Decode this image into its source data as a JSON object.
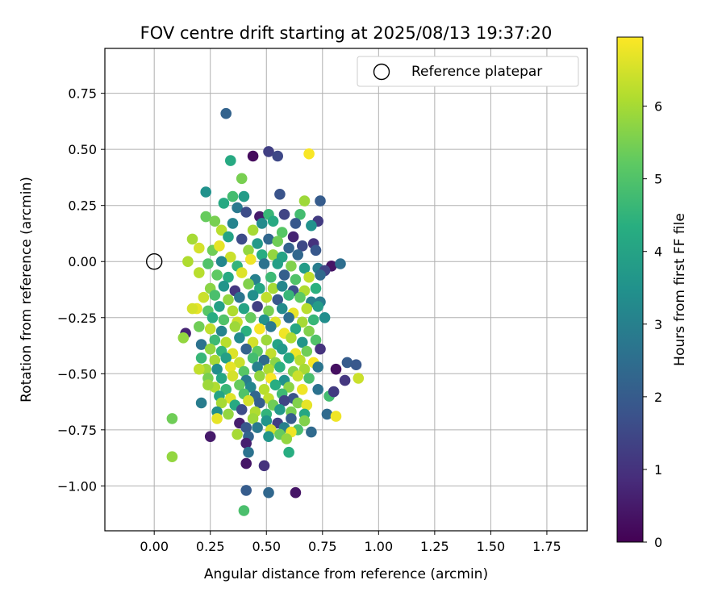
{
  "chart_data": {
    "type": "scatter",
    "title": "FOV centre drift starting at 2025/08/13 19:37:20",
    "xlabel": "Angular distance from reference (arcmin)",
    "ylabel": "Rotation from reference (arcmin)",
    "xlim": [
      -0.22,
      1.93
    ],
    "ylim": [
      -1.2,
      0.95
    ],
    "xticks": [
      "0.00",
      "0.25",
      "0.50",
      "0.75",
      "1.00",
      "1.25",
      "1.50",
      "1.75"
    ],
    "yticks": [
      "0.75",
      "0.50",
      "0.25",
      "0.00",
      "−0.25",
      "−0.50",
      "−0.75",
      "−1.00"
    ],
    "grid": true,
    "legend": {
      "placement": "top-right",
      "entries": [
        {
          "label": "Reference platepar",
          "marker": "hollow-circle"
        }
      ]
    },
    "reference_point": {
      "x": 0.0,
      "y": 0.0
    },
    "colorbar": {
      "label": "Hours from first FF file",
      "colormap": "viridis",
      "range": [
        0,
        6.95
      ],
      "ticks": [
        "0",
        "1",
        "2",
        "3",
        "4",
        "5",
        "6"
      ]
    },
    "points": [
      [
        0.32,
        0.66,
        2.2
      ],
      [
        0.51,
        0.49,
        1.3
      ],
      [
        0.44,
        0.47,
        0.2
      ],
      [
        0.55,
        0.47,
        1.5
      ],
      [
        0.69,
        0.48,
        6.9
      ],
      [
        0.34,
        0.45,
        4.2
      ],
      [
        0.39,
        0.37,
        5.5
      ],
      [
        0.23,
        0.31,
        3.5
      ],
      [
        0.35,
        0.29,
        4.8
      ],
      [
        0.4,
        0.29,
        3.8
      ],
      [
        0.56,
        0.3,
        1.8
      ],
      [
        0.67,
        0.27,
        5.9
      ],
      [
        0.74,
        0.27,
        2.0
      ],
      [
        0.31,
        0.26,
        4.2
      ],
      [
        0.37,
        0.24,
        2.8
      ],
      [
        0.41,
        0.22,
        1.6
      ],
      [
        0.47,
        0.2,
        0.5
      ],
      [
        0.51,
        0.21,
        4.6
      ],
      [
        0.58,
        0.21,
        1.4
      ],
      [
        0.65,
        0.21,
        4.8
      ],
      [
        0.23,
        0.2,
        5.3
      ],
      [
        0.27,
        0.18,
        5.5
      ],
      [
        0.35,
        0.17,
        3.1
      ],
      [
        0.48,
        0.17,
        3.3
      ],
      [
        0.53,
        0.18,
        4.2
      ],
      [
        0.63,
        0.17,
        1.9
      ],
      [
        0.73,
        0.18,
        1.2
      ],
      [
        0.7,
        0.16,
        3.5
      ],
      [
        0.3,
        0.14,
        6.2
      ],
      [
        0.44,
        0.14,
        6.0
      ],
      [
        0.51,
        0.1,
        2.3
      ],
      [
        0.57,
        0.13,
        5.1
      ],
      [
        0.62,
        0.11,
        0.7
      ],
      [
        0.17,
        0.1,
        6.0
      ],
      [
        0.33,
        0.11,
        4.0
      ],
      [
        0.39,
        0.1,
        1.6
      ],
      [
        0.46,
        0.08,
        3.7
      ],
      [
        0.55,
        0.09,
        5.4
      ],
      [
        0.6,
        0.06,
        2.2
      ],
      [
        0.66,
        0.07,
        1.5
      ],
      [
        0.71,
        0.08,
        1.0
      ],
      [
        0.2,
        0.06,
        6.5
      ],
      [
        0.26,
        0.05,
        5.4
      ],
      [
        0.29,
        0.07,
        6.7
      ],
      [
        0.34,
        0.02,
        6.4
      ],
      [
        0.42,
        0.05,
        5.8
      ],
      [
        0.48,
        0.03,
        4.3
      ],
      [
        0.53,
        0.03,
        5.8
      ],
      [
        0.57,
        0.02,
        4.0
      ],
      [
        0.64,
        0.03,
        2.3
      ],
      [
        0.72,
        0.05,
        1.9
      ],
      [
        0.15,
        0.0,
        6.1
      ],
      [
        0.24,
        -0.01,
        5.0
      ],
      [
        0.3,
        0.0,
        3.2
      ],
      [
        0.37,
        -0.02,
        4.5
      ],
      [
        0.43,
        0.01,
        6.8
      ],
      [
        0.49,
        -0.01,
        2.6
      ],
      [
        0.55,
        -0.01,
        3.9
      ],
      [
        0.61,
        -0.02,
        5.6
      ],
      [
        0.67,
        -0.03,
        3.8
      ],
      [
        0.73,
        -0.03,
        2.9
      ],
      [
        0.79,
        -0.02,
        0.4
      ],
      [
        0.83,
        -0.01,
        2.5
      ],
      [
        0.76,
        -0.04,
        1.4
      ],
      [
        0.2,
        -0.05,
        6.2
      ],
      [
        0.28,
        -0.06,
        5.2
      ],
      [
        0.33,
        -0.07,
        4.2
      ],
      [
        0.39,
        -0.05,
        6.6
      ],
      [
        0.45,
        -0.08,
        3.0
      ],
      [
        0.52,
        -0.07,
        4.7
      ],
      [
        0.58,
        -0.06,
        2.1
      ],
      [
        0.63,
        -0.08,
        5.0
      ],
      [
        0.69,
        -0.07,
        6.3
      ],
      [
        0.74,
        -0.06,
        2.4
      ],
      [
        0.25,
        -0.12,
        5.7
      ],
      [
        0.31,
        -0.11,
        3.6
      ],
      [
        0.36,
        -0.13,
        1.1
      ],
      [
        0.42,
        -0.1,
        5.6
      ],
      [
        0.47,
        -0.12,
        4.1
      ],
      [
        0.53,
        -0.12,
        6.0
      ],
      [
        0.57,
        -0.11,
        3.2
      ],
      [
        0.62,
        -0.13,
        1.7
      ],
      [
        0.67,
        -0.13,
        6.1
      ],
      [
        0.72,
        -0.12,
        4.4
      ],
      [
        0.22,
        -0.16,
        6.4
      ],
      [
        0.27,
        -0.15,
        4.9
      ],
      [
        0.33,
        -0.17,
        5.8
      ],
      [
        0.38,
        -0.16,
        2.7
      ],
      [
        0.44,
        -0.15,
        3.4
      ],
      [
        0.5,
        -0.16,
        6.3
      ],
      [
        0.55,
        -0.17,
        1.9
      ],
      [
        0.6,
        -0.15,
        4.6
      ],
      [
        0.65,
        -0.16,
        5.2
      ],
      [
        0.7,
        -0.18,
        3.0
      ],
      [
        0.74,
        -0.18,
        2.9
      ],
      [
        0.19,
        -0.21,
        6.7
      ],
      [
        0.24,
        -0.22,
        5.1
      ],
      [
        0.29,
        -0.2,
        3.9
      ],
      [
        0.35,
        -0.22,
        6.1
      ],
      [
        0.4,
        -0.21,
        4.0
      ],
      [
        0.46,
        -0.2,
        1.3
      ],
      [
        0.51,
        -0.22,
        5.5
      ],
      [
        0.57,
        -0.21,
        3.3
      ],
      [
        0.62,
        -0.23,
        6.7
      ],
      [
        0.68,
        -0.21,
        6.2
      ],
      [
        0.73,
        -0.2,
        3.8
      ],
      [
        0.17,
        -0.21,
        6.5
      ],
      [
        0.26,
        -0.25,
        4.3
      ],
      [
        0.31,
        -0.26,
        5.0
      ],
      [
        0.37,
        -0.27,
        6.4
      ],
      [
        0.43,
        -0.25,
        5.3
      ],
      [
        0.49,
        -0.26,
        3.5
      ],
      [
        0.54,
        -0.27,
        6.6
      ],
      [
        0.6,
        -0.25,
        2.5
      ],
      [
        0.66,
        -0.27,
        6.0
      ],
      [
        0.71,
        -0.26,
        4.6
      ],
      [
        0.76,
        -0.25,
        3.4
      ],
      [
        0.14,
        -0.32,
        0.7
      ],
      [
        0.2,
        -0.29,
        5.4
      ],
      [
        0.25,
        -0.3,
        6.3
      ],
      [
        0.3,
        -0.31,
        3.1
      ],
      [
        0.36,
        -0.29,
        5.9
      ],
      [
        0.41,
        -0.31,
        4.4
      ],
      [
        0.47,
        -0.3,
        6.9
      ],
      [
        0.52,
        -0.29,
        2.8
      ],
      [
        0.58,
        -0.32,
        6.8
      ],
      [
        0.63,
        -0.3,
        4.1
      ],
      [
        0.69,
        -0.31,
        5.6
      ],
      [
        0.13,
        -0.34,
        5.8
      ],
      [
        0.21,
        -0.37,
        2.6
      ],
      [
        0.27,
        -0.35,
        4.7
      ],
      [
        0.32,
        -0.36,
        6.2
      ],
      [
        0.38,
        -0.34,
        3.3
      ],
      [
        0.44,
        -0.36,
        6.5
      ],
      [
        0.5,
        -0.35,
        5.9
      ],
      [
        0.55,
        -0.37,
        4.0
      ],
      [
        0.61,
        -0.34,
        6.1
      ],
      [
        0.66,
        -0.36,
        3.6
      ],
      [
        0.72,
        -0.35,
        5.0
      ],
      [
        0.25,
        -0.39,
        5.8
      ],
      [
        0.3,
        -0.4,
        4.5
      ],
      [
        0.35,
        -0.41,
        6.6
      ],
      [
        0.41,
        -0.39,
        2.2
      ],
      [
        0.46,
        -0.4,
        5.2
      ],
      [
        0.52,
        -0.41,
        6.3
      ],
      [
        0.57,
        -0.39,
        3.7
      ],
      [
        0.63,
        -0.41,
        6.8
      ],
      [
        0.68,
        -0.4,
        5.4
      ],
      [
        0.74,
        -0.39,
        1.0
      ],
      [
        0.21,
        -0.43,
        4.6
      ],
      [
        0.27,
        -0.44,
        6.0
      ],
      [
        0.32,
        -0.43,
        3.9
      ],
      [
        0.38,
        -0.45,
        6.4
      ],
      [
        0.44,
        -0.43,
        4.8
      ],
      [
        0.49,
        -0.44,
        2.4
      ],
      [
        0.54,
        -0.45,
        5.7
      ],
      [
        0.6,
        -0.43,
        4.2
      ],
      [
        0.65,
        -0.44,
        6.2
      ],
      [
        0.71,
        -0.45,
        6.9
      ],
      [
        0.86,
        -0.45,
        2.0
      ],
      [
        0.9,
        -0.46,
        1.9
      ],
      [
        0.23,
        -0.48,
        5.9
      ],
      [
        0.28,
        -0.48,
        3.4
      ],
      [
        0.34,
        -0.47,
        6.7
      ],
      [
        0.4,
        -0.49,
        5.1
      ],
      [
        0.46,
        -0.47,
        3.0
      ],
      [
        0.51,
        -0.48,
        6.1
      ],
      [
        0.56,
        -0.47,
        4.4
      ],
      [
        0.62,
        -0.49,
        5.6
      ],
      [
        0.67,
        -0.48,
        6.0
      ],
      [
        0.73,
        -0.47,
        2.7
      ],
      [
        0.81,
        -0.48,
        0.3
      ],
      [
        0.2,
        -0.48,
        6.3
      ],
      [
        0.24,
        -0.52,
        5.5
      ],
      [
        0.3,
        -0.52,
        4.1
      ],
      [
        0.35,
        -0.51,
        6.5
      ],
      [
        0.41,
        -0.53,
        2.9
      ],
      [
        0.47,
        -0.51,
        5.8
      ],
      [
        0.52,
        -0.52,
        6.9
      ],
      [
        0.58,
        -0.53,
        3.5
      ],
      [
        0.64,
        -0.51,
        6.4
      ],
      [
        0.69,
        -0.52,
        4.9
      ],
      [
        0.85,
        -0.53,
        1.1
      ],
      [
        0.91,
        -0.52,
        6.4
      ],
      [
        0.27,
        -0.56,
        6.1
      ],
      [
        0.32,
        -0.57,
        4.6
      ],
      [
        0.38,
        -0.55,
        5.3
      ],
      [
        0.43,
        -0.56,
        3.2
      ],
      [
        0.49,
        -0.57,
        6.2
      ],
      [
        0.54,
        -0.55,
        4.3
      ],
      [
        0.6,
        -0.56,
        5.7
      ],
      [
        0.66,
        -0.57,
        6.8
      ],
      [
        0.73,
        -0.57,
        2.6
      ],
      [
        0.24,
        -0.55,
        5.9
      ],
      [
        0.29,
        -0.6,
        4.0
      ],
      [
        0.34,
        -0.61,
        6.6
      ],
      [
        0.4,
        -0.59,
        5.0
      ],
      [
        0.45,
        -0.6,
        2.3
      ],
      [
        0.51,
        -0.61,
        6.3
      ],
      [
        0.57,
        -0.59,
        4.7
      ],
      [
        0.62,
        -0.61,
        1.8
      ],
      [
        0.78,
        -0.6,
        4.8
      ],
      [
        0.8,
        -0.58,
        1.2
      ],
      [
        0.21,
        -0.63,
        2.9
      ],
      [
        0.3,
        -0.63,
        6.0
      ],
      [
        0.36,
        -0.64,
        4.2
      ],
      [
        0.42,
        -0.62,
        6.5
      ],
      [
        0.47,
        -0.63,
        2.1
      ],
      [
        0.53,
        -0.64,
        5.4
      ],
      [
        0.58,
        -0.62,
        1.4
      ],
      [
        0.64,
        -0.63,
        5.6
      ],
      [
        0.68,
        -0.64,
        6.7
      ],
      [
        0.28,
        -0.67,
        3.4
      ],
      [
        0.33,
        -0.68,
        5.8
      ],
      [
        0.39,
        -0.66,
        1.6
      ],
      [
        0.45,
        -0.67,
        6.1
      ],
      [
        0.5,
        -0.68,
        4.5
      ],
      [
        0.56,
        -0.66,
        3.7
      ],
      [
        0.61,
        -0.67,
        5.5
      ],
      [
        0.67,
        -0.68,
        4.1
      ],
      [
        0.77,
        -0.68,
        2.4
      ],
      [
        0.81,
        -0.69,
        6.8
      ],
      [
        0.08,
        -0.7,
        5.4
      ],
      [
        0.28,
        -0.7,
        6.7
      ],
      [
        0.38,
        -0.72,
        0.6
      ],
      [
        0.44,
        -0.7,
        5.9
      ],
      [
        0.5,
        -0.71,
        3.6
      ],
      [
        0.55,
        -0.72,
        1.3
      ],
      [
        0.61,
        -0.7,
        2.0
      ],
      [
        0.67,
        -0.71,
        5.6
      ],
      [
        0.41,
        -0.74,
        1.9
      ],
      [
        0.46,
        -0.74,
        2.8
      ],
      [
        0.52,
        -0.75,
        6.5
      ],
      [
        0.58,
        -0.74,
        3.0
      ],
      [
        0.64,
        -0.75,
        4.9
      ],
      [
        0.37,
        -0.77,
        6.0
      ],
      [
        0.42,
        -0.78,
        2.2
      ],
      [
        0.51,
        -0.78,
        3.6
      ],
      [
        0.56,
        -0.77,
        5.3
      ],
      [
        0.61,
        -0.76,
        6.8
      ],
      [
        0.7,
        -0.76,
        2.4
      ],
      [
        0.25,
        -0.78,
        0.5
      ],
      [
        0.41,
        -0.81,
        0.6
      ],
      [
        0.59,
        -0.79,
        5.8
      ],
      [
        0.42,
        -0.85,
        2.6
      ],
      [
        0.08,
        -0.87,
        5.8
      ],
      [
        0.6,
        -0.85,
        4.3
      ],
      [
        0.41,
        -0.9,
        0.4
      ],
      [
        0.49,
        -0.91,
        1.0
      ],
      [
        0.41,
        -1.02,
        2.0
      ],
      [
        0.51,
        -1.03,
        2.3
      ],
      [
        0.63,
        -1.03,
        0.4
      ],
      [
        0.4,
        -1.11,
        4.9
      ]
    ]
  }
}
